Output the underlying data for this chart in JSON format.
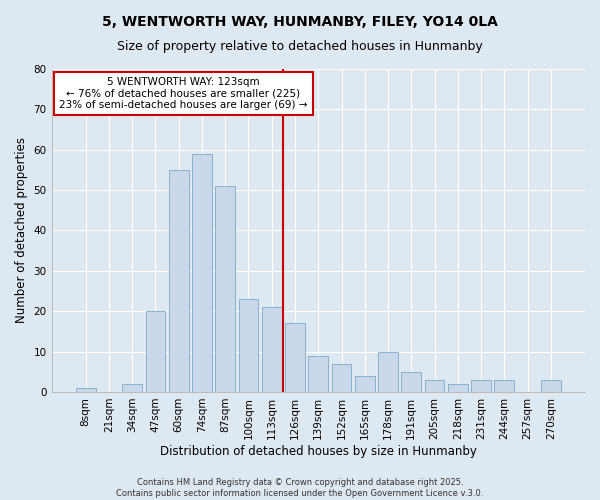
{
  "title": "5, WENTWORTH WAY, HUNMANBY, FILEY, YO14 0LA",
  "subtitle": "Size of property relative to detached houses in Hunmanby",
  "xlabel": "Distribution of detached houses by size in Hunmanby",
  "ylabel": "Number of detached properties",
  "bar_labels": [
    "8sqm",
    "21sqm",
    "34sqm",
    "47sqm",
    "60sqm",
    "74sqm",
    "87sqm",
    "100sqm",
    "113sqm",
    "126sqm",
    "139sqm",
    "152sqm",
    "165sqm",
    "178sqm",
    "191sqm",
    "205sqm",
    "218sqm",
    "231sqm",
    "244sqm",
    "257sqm",
    "270sqm"
  ],
  "bar_values": [
    1,
    0,
    2,
    20,
    55,
    59,
    51,
    23,
    21,
    17,
    9,
    7,
    4,
    10,
    5,
    3,
    2,
    3,
    3,
    0,
    3
  ],
  "bar_color": "#c8d8ea",
  "bar_edge_color": "#7aaac8",
  "vline_x_index": 9,
  "vline_color": "#cc0000",
  "annotation_text": "5 WENTWORTH WAY: 123sqm\n← 76% of detached houses are smaller (225)\n23% of semi-detached houses are larger (69) →",
  "annotation_box_color": "#cc0000",
  "annotation_text_color": "#000000",
  "ylim": [
    0,
    80
  ],
  "yticks": [
    0,
    10,
    20,
    30,
    40,
    50,
    60,
    70,
    80
  ],
  "background_color": "#dde8f0",
  "plot_bg_color": "#dde8f0",
  "footer_line1": "Contains HM Land Registry data © Crown copyright and database right 2025.",
  "footer_line2": "Contains public sector information licensed under the Open Government Licence v.3.0.",
  "title_fontsize": 10,
  "subtitle_fontsize": 9,
  "xlabel_fontsize": 8.5,
  "ylabel_fontsize": 8.5,
  "tick_fontsize": 7.5,
  "annotation_fontsize": 7.5,
  "footer_fontsize": 6.0
}
